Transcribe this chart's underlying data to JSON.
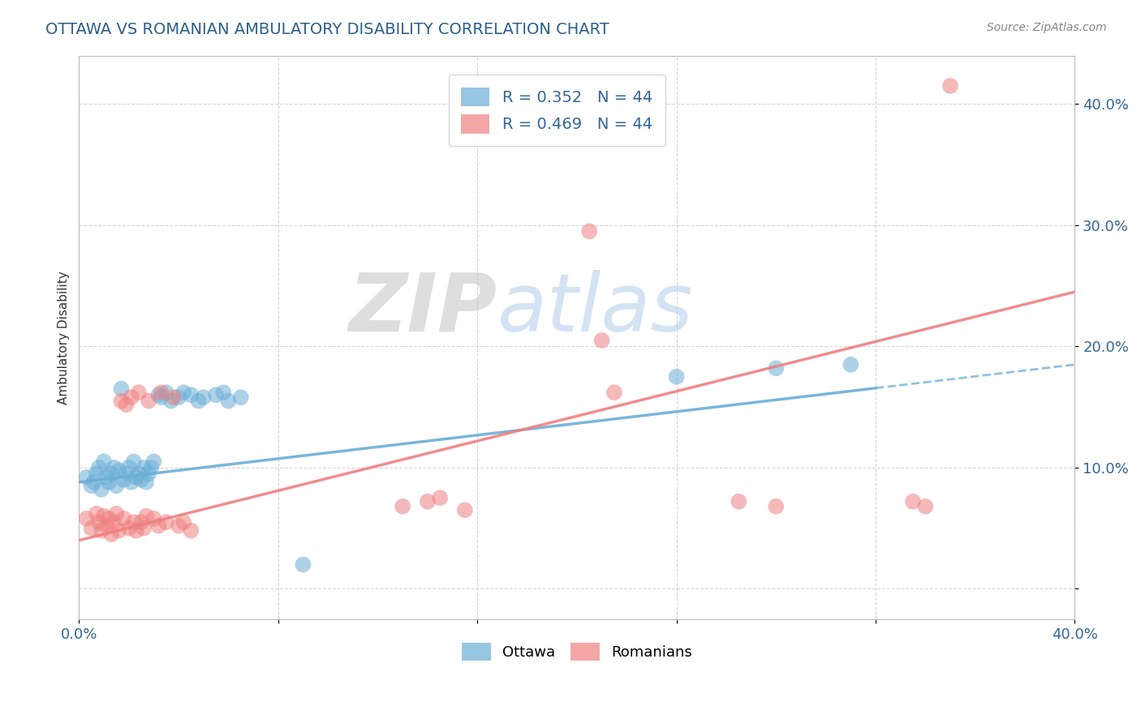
{
  "title": "OTTAWA VS ROMANIAN AMBULATORY DISABILITY CORRELATION CHART",
  "source": "Source: ZipAtlas.com",
  "ylabel": "Ambulatory Disability",
  "xlim": [
    0.0,
    0.4
  ],
  "ylim": [
    -0.025,
    0.44
  ],
  "ytick_vals": [
    0.0,
    0.1,
    0.2,
    0.3,
    0.4
  ],
  "xtick_vals": [
    0.0,
    0.08,
    0.16,
    0.24,
    0.32,
    0.4
  ],
  "ottawa_R": 0.352,
  "ottawa_N": 44,
  "romanian_R": 0.469,
  "romanian_N": 44,
  "ottawa_color": "#6baed6",
  "romanian_color": "#f08080",
  "ottawa_scatter": [
    [
      0.003,
      0.092
    ],
    [
      0.005,
      0.085
    ],
    [
      0.006,
      0.088
    ],
    [
      0.007,
      0.095
    ],
    [
      0.008,
      0.1
    ],
    [
      0.009,
      0.082
    ],
    [
      0.01,
      0.105
    ],
    [
      0.011,
      0.092
    ],
    [
      0.012,
      0.088
    ],
    [
      0.013,
      0.095
    ],
    [
      0.014,
      0.1
    ],
    [
      0.015,
      0.085
    ],
    [
      0.016,
      0.098
    ],
    [
      0.017,
      0.165
    ],
    [
      0.018,
      0.09
    ],
    [
      0.019,
      0.095
    ],
    [
      0.02,
      0.1
    ],
    [
      0.021,
      0.088
    ],
    [
      0.022,
      0.105
    ],
    [
      0.023,
      0.092
    ],
    [
      0.024,
      0.095
    ],
    [
      0.025,
      0.09
    ],
    [
      0.026,
      0.1
    ],
    [
      0.027,
      0.088
    ],
    [
      0.028,
      0.095
    ],
    [
      0.029,
      0.1
    ],
    [
      0.03,
      0.105
    ],
    [
      0.032,
      0.16
    ],
    [
      0.033,
      0.158
    ],
    [
      0.035,
      0.162
    ],
    [
      0.037,
      0.155
    ],
    [
      0.04,
      0.158
    ],
    [
      0.042,
      0.162
    ],
    [
      0.045,
      0.16
    ],
    [
      0.048,
      0.155
    ],
    [
      0.05,
      0.158
    ],
    [
      0.055,
      0.16
    ],
    [
      0.058,
      0.162
    ],
    [
      0.06,
      0.155
    ],
    [
      0.065,
      0.158
    ],
    [
      0.09,
      0.02
    ],
    [
      0.24,
      0.175
    ],
    [
      0.28,
      0.182
    ],
    [
      0.31,
      0.185
    ]
  ],
  "romanian_scatter": [
    [
      0.003,
      0.058
    ],
    [
      0.005,
      0.05
    ],
    [
      0.007,
      0.062
    ],
    [
      0.008,
      0.055
    ],
    [
      0.009,
      0.048
    ],
    [
      0.01,
      0.06
    ],
    [
      0.011,
      0.052
    ],
    [
      0.012,
      0.058
    ],
    [
      0.013,
      0.045
    ],
    [
      0.014,
      0.055
    ],
    [
      0.015,
      0.062
    ],
    [
      0.016,
      0.048
    ],
    [
      0.017,
      0.155
    ],
    [
      0.018,
      0.058
    ],
    [
      0.019,
      0.152
    ],
    [
      0.02,
      0.05
    ],
    [
      0.021,
      0.158
    ],
    [
      0.022,
      0.055
    ],
    [
      0.023,
      0.048
    ],
    [
      0.024,
      0.162
    ],
    [
      0.025,
      0.055
    ],
    [
      0.026,
      0.05
    ],
    [
      0.027,
      0.06
    ],
    [
      0.028,
      0.155
    ],
    [
      0.03,
      0.058
    ],
    [
      0.032,
      0.052
    ],
    [
      0.033,
      0.162
    ],
    [
      0.035,
      0.055
    ],
    [
      0.038,
      0.158
    ],
    [
      0.04,
      0.052
    ],
    [
      0.042,
      0.055
    ],
    [
      0.045,
      0.048
    ],
    [
      0.13,
      0.068
    ],
    [
      0.14,
      0.072
    ],
    [
      0.145,
      0.075
    ],
    [
      0.155,
      0.065
    ],
    [
      0.205,
      0.295
    ],
    [
      0.21,
      0.205
    ],
    [
      0.215,
      0.162
    ],
    [
      0.265,
      0.072
    ],
    [
      0.28,
      0.068
    ],
    [
      0.335,
      0.072
    ],
    [
      0.34,
      0.068
    ],
    [
      0.35,
      0.415
    ]
  ],
  "background_color": "#ffffff",
  "grid_color": "#cccccc",
  "title_color": "#2c5f8a",
  "axis_label_color": "#333333",
  "tick_color": "#336699",
  "legend_text_color": "#336699"
}
